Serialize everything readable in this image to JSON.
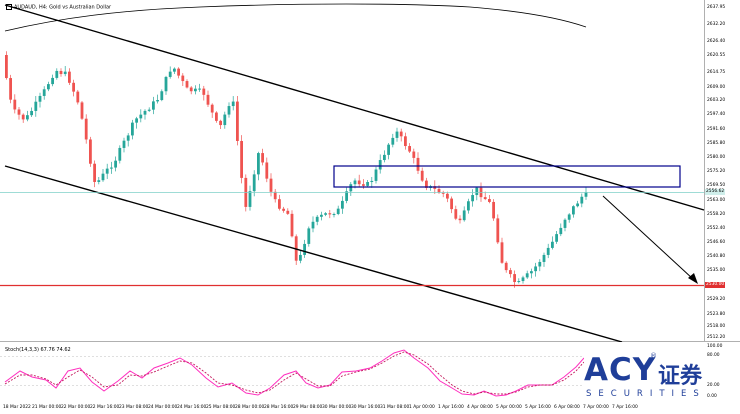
{
  "chart": {
    "title": "AUDAUD, H4: Gold vs Australian Dollar",
    "indicator_title": "Stoch(14,3,3) 67.76 74.62",
    "price_labels": [
      "2637.95",
      "2632.20",
      "2626.40",
      "2620.55",
      "2614.75",
      "2609.00",
      "2603.20",
      "2597.40",
      "2591.60",
      "2585.80",
      "2580.00",
      "2575.20",
      "2569.50",
      "2563.00",
      "2558.20",
      "2552.40",
      "2546.60",
      "2540.80",
      "2535.00",
      "2529.20",
      "2523.80",
      "2518.00",
      "2512.20"
    ],
    "current_price_badge": "2556.62",
    "level_badge": "2530.00",
    "indicator_labels": [
      "100.00",
      "80.00",
      "20.00",
      "0.00"
    ],
    "time_labels": [
      "18 Mar 2022",
      "21 Mar 00:00",
      "22 Mar 00:00",
      "22 Mar 16:00",
      "23 Mar 08:00",
      "24 Mar 00:00",
      "24 Mar 16:00",
      "25 Mar 08:00",
      "28 Mar 00:00",
      "28 Mar 16:00",
      "29 Mar 08:00",
      "30 Mar 00:00",
      "30 Mar 16:00",
      "31 Mar 08:00",
      "1 Apr 00:00",
      "1 Apr 16:00",
      "4 Apr 08:00",
      "5 Apr 00:00",
      "5 Apr 16:00",
      "6 Apr 08:00",
      "7 Apr 00:00",
      "7 Apr 16:00"
    ],
    "colors": {
      "bull": "#26a69a",
      "bear": "#ef5350",
      "support": "#e03030",
      "zone": "#00008b",
      "channel": "#000000",
      "stoch_main": "#ff2fbf",
      "stoch_signal": "#c2185b",
      "brand": "#1f3e99"
    },
    "icons": {
      "chart_icon": "chart-mini-icon"
    }
  },
  "logo": {
    "brand": "ACY",
    "chinese": "证券",
    "securities": "SECURITIES",
    "reg": "®"
  }
}
